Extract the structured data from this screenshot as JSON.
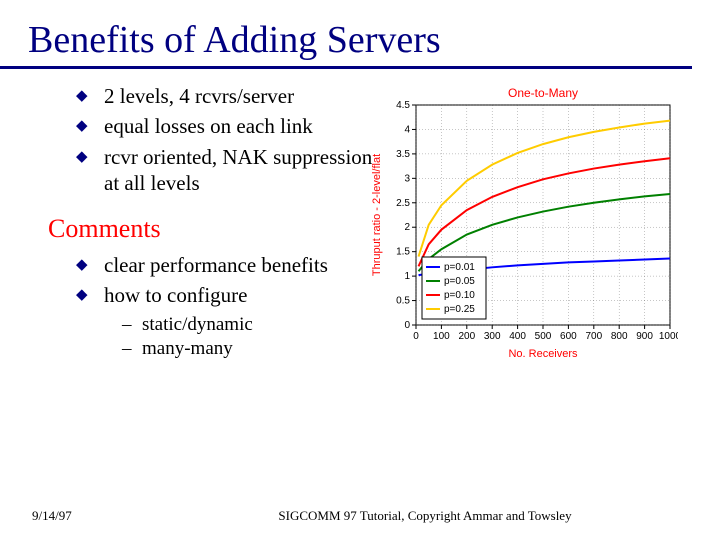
{
  "title": "Benefits of Adding Servers",
  "bullets_top": [
    "2 levels, 4 rcvrs/server",
    "equal losses on each link",
    "rcvr oriented, NAK suppression at all levels"
  ],
  "subhead": "Comments",
  "bullets_mid": [
    "clear performance benefits",
    "how to configure"
  ],
  "sub_items": [
    "static/dynamic",
    "many-many"
  ],
  "footer": {
    "date": "9/14/97",
    "credit": "SIGCOMM 97 Tutorial, Copyright Ammar and Towsley"
  },
  "chart": {
    "type": "line",
    "title": "One-to-Many",
    "title_color": "#ff0000",
    "xlabel": "No. Receivers",
    "ylabel": "Thruput ratio - 2-level/flat",
    "axis_label_color": "#ff0000",
    "tick_color": "#000000",
    "tick_fontsize": 10,
    "label_fontsize": 11,
    "title_fontsize": 12,
    "background_color": "#ffffff",
    "grid_color": "#404040",
    "axis_color": "#000000",
    "xlim": [
      0,
      1000
    ],
    "ylim": [
      0,
      4.5
    ],
    "xticks": [
      0,
      100,
      200,
      300,
      400,
      500,
      600,
      700,
      800,
      900,
      1000
    ],
    "yticks": [
      0,
      0.5,
      1,
      1.5,
      2,
      2.5,
      3,
      3.5,
      4,
      4.5
    ],
    "legend": {
      "position": "inside-lower-right",
      "box_stroke": "#000000",
      "box_fill": "#ffffff",
      "fontsize": 10
    },
    "series": [
      {
        "label": "p=0.01",
        "color": "#0000ff",
        "width": 2,
        "x": [
          10,
          50,
          100,
          200,
          300,
          400,
          500,
          600,
          700,
          800,
          900,
          1000
        ],
        "y": [
          1.02,
          1.05,
          1.08,
          1.13,
          1.18,
          1.22,
          1.25,
          1.28,
          1.3,
          1.32,
          1.34,
          1.36
        ]
      },
      {
        "label": "p=0.05",
        "color": "#008000",
        "width": 2,
        "x": [
          10,
          50,
          100,
          200,
          300,
          400,
          500,
          600,
          700,
          800,
          900,
          1000
        ],
        "y": [
          1.1,
          1.35,
          1.55,
          1.85,
          2.05,
          2.2,
          2.32,
          2.42,
          2.5,
          2.57,
          2.63,
          2.68
        ]
      },
      {
        "label": "p=0.10",
        "color": "#ff0000",
        "width": 2,
        "x": [
          10,
          50,
          100,
          200,
          300,
          400,
          500,
          600,
          700,
          800,
          900,
          1000
        ],
        "y": [
          1.2,
          1.65,
          1.95,
          2.35,
          2.62,
          2.82,
          2.98,
          3.1,
          3.2,
          3.28,
          3.35,
          3.41
        ]
      },
      {
        "label": "p=0.25",
        "color": "#ffcc00",
        "width": 2,
        "x": [
          10,
          50,
          100,
          200,
          300,
          400,
          500,
          600,
          700,
          800,
          900,
          1000
        ],
        "y": [
          1.4,
          2.05,
          2.45,
          2.95,
          3.28,
          3.52,
          3.7,
          3.84,
          3.95,
          4.04,
          4.12,
          4.18
        ]
      }
    ]
  }
}
